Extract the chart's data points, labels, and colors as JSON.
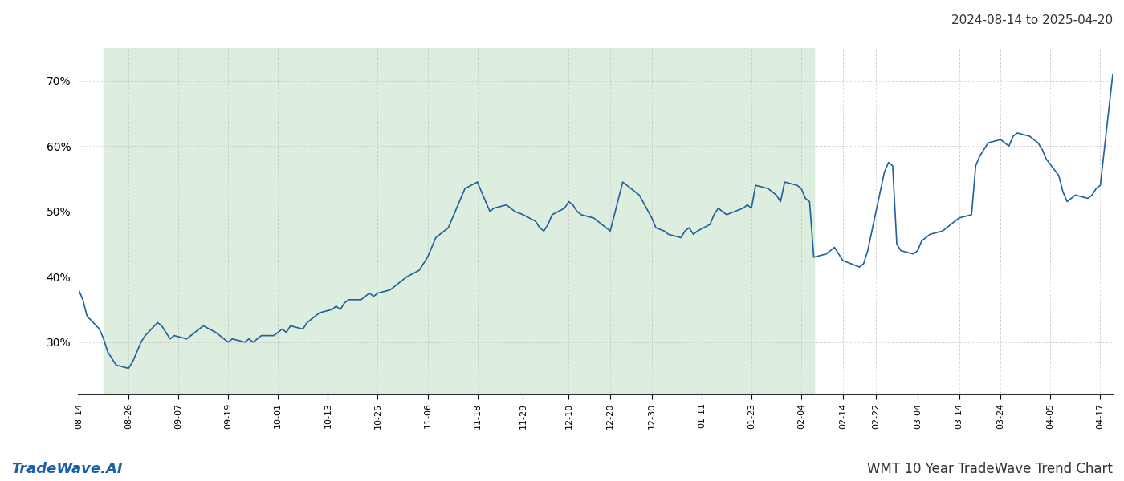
{
  "title_right": "2024-08-14 to 2025-04-20",
  "footer_left": "TradeWave.AI",
  "footer_right": "WMT 10 Year TradeWave Trend Chart",
  "line_color": "#2060a0",
  "line_width": 1.2,
  "shaded_color": "#d0e8d0",
  "shaded_alpha": 0.7,
  "shaded_start": "2024-08-20",
  "shaded_end": "2025-02-07",
  "background_color": "#ffffff",
  "grid_color": "#c0c0c0",
  "grid_style": ":",
  "yticks": [
    30,
    40,
    50,
    60,
    70
  ],
  "ylim": [
    22,
    75
  ],
  "figsize": [
    14.0,
    6.0
  ],
  "dpi": 100,
  "xtick_labels": [
    "08-14",
    "08-26",
    "09-07",
    "09-19",
    "10-01",
    "10-13",
    "10-25",
    "11-06",
    "11-18",
    "11-29",
    "12-10",
    "12-20",
    "12-30",
    "01-11",
    "01-23",
    "02-04",
    "02-14",
    "02-22",
    "03-04",
    "03-14",
    "03-24",
    "04-05",
    "04-17"
  ],
  "xtick_positions": [
    "2024-08-14",
    "2024-08-26",
    "2024-09-07",
    "2024-09-19",
    "2024-10-01",
    "2024-10-13",
    "2024-10-25",
    "2024-11-06",
    "2024-11-18",
    "2024-11-29",
    "2024-12-10",
    "2024-12-20",
    "2024-12-30",
    "2025-01-11",
    "2025-01-23",
    "2025-02-04",
    "2025-02-14",
    "2025-02-22",
    "2025-03-04",
    "2025-03-14",
    "2025-03-24",
    "2025-04-05",
    "2025-04-17"
  ],
  "dates": [
    "2024-08-14",
    "2024-08-15",
    "2024-08-16",
    "2024-08-19",
    "2024-08-20",
    "2024-08-21",
    "2024-08-22",
    "2024-08-23",
    "2024-08-26",
    "2024-08-27",
    "2024-08-28",
    "2024-08-29",
    "2024-08-30",
    "2024-09-02",
    "2024-09-03",
    "2024-09-04",
    "2024-09-05",
    "2024-09-06",
    "2024-09-09",
    "2024-09-10",
    "2024-09-11",
    "2024-09-12",
    "2024-09-13",
    "2024-09-16",
    "2024-09-17",
    "2024-09-18",
    "2024-09-19",
    "2024-09-20",
    "2024-09-23",
    "2024-09-24",
    "2024-09-25",
    "2024-09-26",
    "2024-09-27",
    "2024-09-30",
    "2024-10-01",
    "2024-10-02",
    "2024-10-03",
    "2024-10-04",
    "2024-10-07",
    "2024-10-08",
    "2024-10-09",
    "2024-10-10",
    "2024-10-11",
    "2024-10-14",
    "2024-10-15",
    "2024-10-16",
    "2024-10-17",
    "2024-10-18",
    "2024-10-21",
    "2024-10-22",
    "2024-10-23",
    "2024-10-24",
    "2024-10-25",
    "2024-10-28",
    "2024-10-29",
    "2024-10-30",
    "2024-10-31",
    "2024-11-01",
    "2024-11-04",
    "2024-11-05",
    "2024-11-06",
    "2024-11-07",
    "2024-11-08",
    "2024-11-11",
    "2024-11-12",
    "2024-11-13",
    "2024-11-14",
    "2024-11-15",
    "2024-11-18",
    "2024-11-19",
    "2024-11-20",
    "2024-11-21",
    "2024-11-22",
    "2024-11-25",
    "2024-11-26",
    "2024-11-27",
    "2024-11-29",
    "2024-12-02",
    "2024-12-03",
    "2024-12-04",
    "2024-12-05",
    "2024-12-06",
    "2024-12-09",
    "2024-12-10",
    "2024-12-11",
    "2024-12-12",
    "2024-12-13",
    "2024-12-16",
    "2024-12-17",
    "2024-12-18",
    "2024-12-19",
    "2024-12-20",
    "2024-12-23",
    "2024-12-24",
    "2024-12-26",
    "2024-12-27",
    "2024-12-30",
    "2024-12-31",
    "2025-01-02",
    "2025-01-03",
    "2025-01-06",
    "2025-01-07",
    "2025-01-08",
    "2025-01-09",
    "2025-01-10",
    "2025-01-13",
    "2025-01-14",
    "2025-01-15",
    "2025-01-16",
    "2025-01-17",
    "2025-01-21",
    "2025-01-22",
    "2025-01-23",
    "2025-01-24",
    "2025-01-27",
    "2025-01-28",
    "2025-01-29",
    "2025-01-30",
    "2025-01-31",
    "2025-02-03",
    "2025-02-04",
    "2025-02-05",
    "2025-02-06",
    "2025-02-07",
    "2025-02-10",
    "2025-02-11",
    "2025-02-12",
    "2025-02-13",
    "2025-02-14",
    "2025-02-18",
    "2025-02-19",
    "2025-02-20",
    "2025-02-21",
    "2025-02-24",
    "2025-02-25",
    "2025-02-26",
    "2025-02-27",
    "2025-02-28",
    "2025-03-03",
    "2025-03-04",
    "2025-03-05",
    "2025-03-06",
    "2025-03-07",
    "2025-03-10",
    "2025-03-11",
    "2025-03-12",
    "2025-03-13",
    "2025-03-14",
    "2025-03-17",
    "2025-03-18",
    "2025-03-19",
    "2025-03-20",
    "2025-03-21",
    "2025-03-24",
    "2025-03-25",
    "2025-03-26",
    "2025-03-27",
    "2025-03-28",
    "2025-03-31",
    "2025-04-01",
    "2025-04-02",
    "2025-04-03",
    "2025-04-04",
    "2025-04-07",
    "2025-04-08",
    "2025-04-09",
    "2025-04-10",
    "2025-04-11",
    "2025-04-14",
    "2025-04-15",
    "2025-04-16",
    "2025-04-17",
    "2025-04-20"
  ],
  "values": [
    38.0,
    36.5,
    34.0,
    32.0,
    30.5,
    28.5,
    27.5,
    26.5,
    26.0,
    27.0,
    28.5,
    30.0,
    31.0,
    33.0,
    32.5,
    31.5,
    30.5,
    31.0,
    30.5,
    31.0,
    31.5,
    32.0,
    32.5,
    31.5,
    31.0,
    30.5,
    30.0,
    30.5,
    30.0,
    30.5,
    30.0,
    30.5,
    31.0,
    31.0,
    31.5,
    32.0,
    31.5,
    32.5,
    32.0,
    33.0,
    33.5,
    34.0,
    34.5,
    35.0,
    35.5,
    35.0,
    36.0,
    36.5,
    36.5,
    37.0,
    37.5,
    37.0,
    37.5,
    38.0,
    38.5,
    39.0,
    39.5,
    40.0,
    41.0,
    42.0,
    43.0,
    44.5,
    46.0,
    47.5,
    49.0,
    50.5,
    52.0,
    53.5,
    54.5,
    53.0,
    51.5,
    50.0,
    50.5,
    51.0,
    50.5,
    50.0,
    49.5,
    48.5,
    47.5,
    47.0,
    48.0,
    49.5,
    50.5,
    51.5,
    51.0,
    50.0,
    49.5,
    49.0,
    48.5,
    48.0,
    47.5,
    47.0,
    54.5,
    54.0,
    53.0,
    52.5,
    49.0,
    47.5,
    47.0,
    46.5,
    46.0,
    47.0,
    47.5,
    46.5,
    47.0,
    48.0,
    49.5,
    50.5,
    50.0,
    49.5,
    50.5,
    51.0,
    50.5,
    54.0,
    53.5,
    53.0,
    52.5,
    51.5,
    54.5,
    54.0,
    53.5,
    52.0,
    51.5,
    43.0,
    43.5,
    44.0,
    44.5,
    43.5,
    42.5,
    41.5,
    42.0,
    44.0,
    47.0,
    56.0,
    57.5,
    57.0,
    45.0,
    44.0,
    43.5,
    44.0,
    45.5,
    46.0,
    46.5,
    47.0,
    47.5,
    48.0,
    48.5,
    49.0,
    49.5,
    57.0,
    58.5,
    59.5,
    60.5,
    61.0,
    60.5,
    60.0,
    61.5,
    62.0,
    61.5,
    61.0,
    60.5,
    59.5,
    58.0,
    55.5,
    53.0,
    51.5,
    52.0,
    52.5,
    52.0,
    52.5,
    53.5,
    54.0,
    71.0
  ]
}
